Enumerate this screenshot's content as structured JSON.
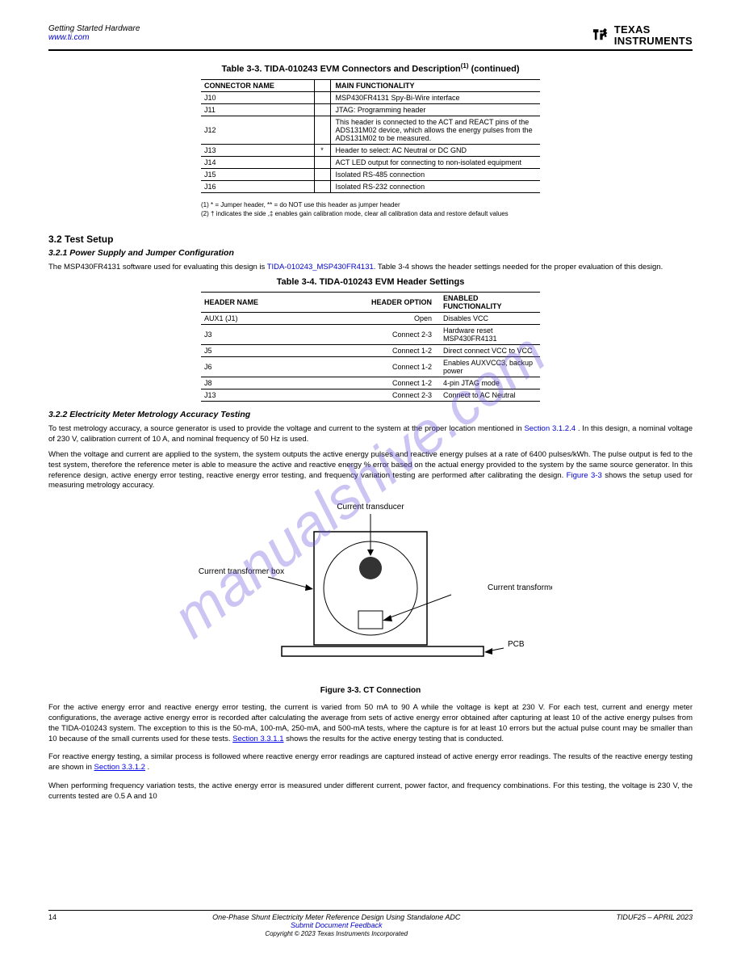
{
  "header": {
    "left_line1_label": "Getting Started Hardware",
    "left_line2_link": "www.ti.com",
    "logo_line1": "TEXAS",
    "logo_line2": "INSTRUMENTS"
  },
  "table1": {
    "title": "Table 3-3. TIDA-010243 EVM Connectors and Description",
    "title_cont": " (continued)",
    "sup": "(1)",
    "headers": [
      "CONNECTOR NAME",
      " ",
      "MAIN FUNCTIONALITY"
    ],
    "rows": [
      [
        "J10",
        " ",
        "MSP430FR4131 Spy-Bi-Wire interface"
      ],
      [
        "J11",
        " ",
        "JTAG: Programming header"
      ],
      [
        "J12",
        " ",
        "This header is connected to the ACT and REACT pins of the ADS131M02 device, which allows the energy pulses from the ADS131M02 to be measured."
      ],
      [
        "J13",
        "*",
        "Header to select: AC Neutral or DC GND"
      ],
      [
        "J14",
        " ",
        "ACT LED output for connecting to non-isolated equipment"
      ],
      [
        "J15",
        " ",
        "Isolated RS-485 connection"
      ],
      [
        "J16",
        " ",
        "Isolated RS-232 connection"
      ]
    ],
    "footnotes": [
      "(1)  * = Jumper header, ** = do NOT use this header as jumper header",
      "(2)  † indicates the side ,‡ enables gain calibration mode, clear all calibration data and restore default values"
    ]
  },
  "section": {
    "h1": "3.2 Test Setup",
    "h2": "3.2.1 Power Supply and Jumper Configuration",
    "paragraph_a": "The MSP430FR4131 software used for evaluating this design is ",
    "paragraph_link": "TIDA-010243_MSP430FR4131",
    "paragraph_b": "Table 3-4",
    "paragraph_c": " shows the header settings needed for the proper evaluation of this design."
  },
  "table2": {
    "title": "Table 3-4. TIDA-010243 EVM Header Settings",
    "headers": [
      "HEADER NAME",
      "HEADER OPTION",
      "ENABLED FUNCTIONALITY"
    ],
    "rows": [
      [
        "AUX1 (J1)",
        "Open",
        "Disables VCC"
      ],
      [
        "J3",
        "Connect 2-3",
        "Hardware reset MSP430FR4131"
      ],
      [
        "J5",
        "Connect 1-2",
        "Direct connect VCC to VCC"
      ],
      [
        "J6",
        "Connect 1-2",
        "Enables AUXVCC3, backup power"
      ],
      [
        "J8",
        "Connect 1-2",
        "4-pin JTAG mode"
      ],
      [
        "J13",
        "Connect 2-3",
        "Connect to AC Neutral"
      ]
    ]
  },
  "ct_section": {
    "h2": "3.2.2 Electricity Meter Metrology Accuracy Testing",
    "p1": "To test metrology accuracy, a source generator is used to provide the voltage and current to the system at the proper location mentioned in ",
    "p1_link": "Section 3.1.2.4",
    "p1_b": ". In this design, a nominal voltage of 230 V, calibration current of 10 A, and nominal frequency of 50 Hz is used.",
    "p2a": "When the voltage and current are applied to the system, the system outputs the active energy pulses and reactive energy pulses at a rate of 6400 pulses/kWh. The pulse output is fed to the test system, therefore the reference meter is able to measure the active and reactive energy % error based on the actual energy provided to the system by the same source generator. In this reference design, active energy error testing, reactive energy error testing, and frequency variation testing are performed after calibrating the design. ",
    "p2_link": "Figure 3-3",
    "p2b": " shows the setup used for measuring metrology accuracy."
  },
  "figure": {
    "labels": {
      "top": "Current transducer",
      "left": "Current transformer box",
      "right": "Current transformer lead wires",
      "bottom": "PCB"
    },
    "caption": "Figure 3-3. CT Connection"
  },
  "bottom": {
    "p1a": "For the active energy error and reactive energy error testing, the current is varied from 50 mA to 90 A while the voltage is kept at 230 V. For each test, current and energy meter configurations, the average active energy error is recorded after calculating the average from sets of active energy error obtained after capturing at least 10 of the active energy pulses from the TIDA-010243 system. The exception to this is the 50-mA, 100-mA, 250-mA, and 500-mA tests, where the capture is for at least 10 errors but the actual pulse count may be smaller than 10 because of the small currents used for these tests. ",
    "p1_link": "Section 3.3.1.1",
    "p1b": " shows the results for the active energy testing that is conducted.",
    "p2": "For reactive energy testing, a similar process is followed where reactive energy error readings are captured instead of active energy error readings. The results of the reactive energy testing are shown in ",
    "p2_link": "Section 3.3.1.2",
    "p2b": ".",
    "p3": "When performing frequency variation tests, the active energy error is measured under different current, power factor, and frequency combinations. For this testing, the voltage is 230 V, the currents tested are 0.5 A and 10"
  },
  "footer": {
    "page": "14",
    "title": "One-Phase Shunt Electricity Meter Reference Design Using Standalone ADC",
    "doc": "TIDUF25 – APRIL 2023",
    "feedback": "Submit Document Feedback",
    "copyright": "Copyright © 2023 Texas Instruments Incorporated"
  },
  "colors": {
    "link": "#0000cc",
    "text": "#000000",
    "watermark": "rgba(110,90,220,0.35)"
  }
}
